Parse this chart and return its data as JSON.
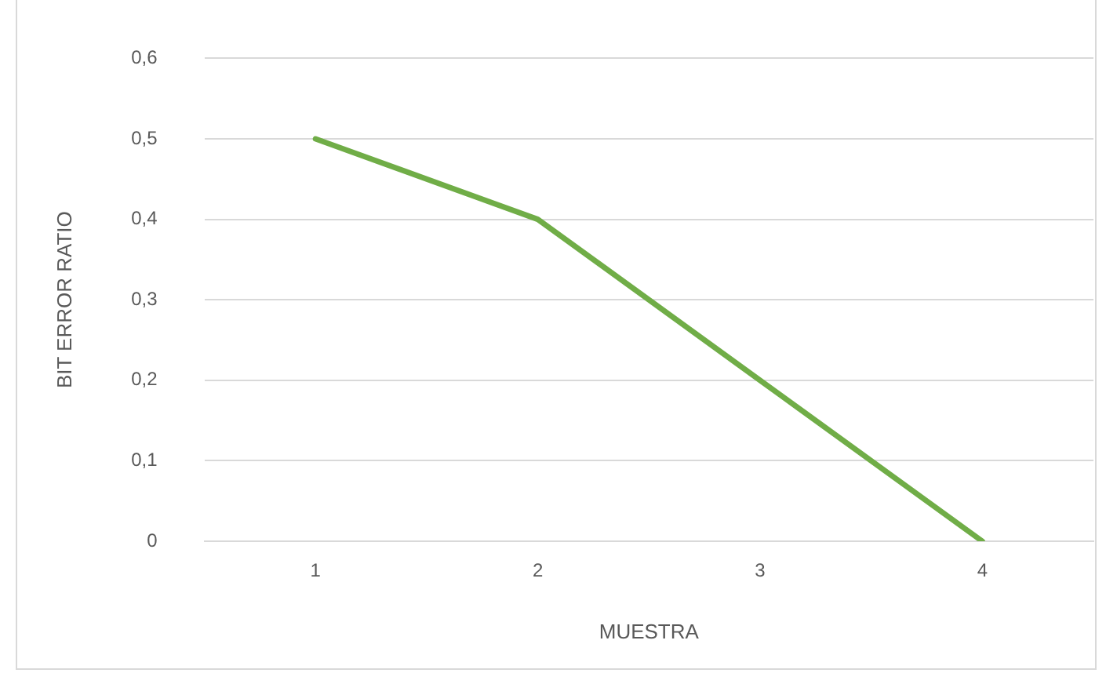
{
  "chart_data": {
    "type": "line",
    "xlabel": "MUESTRA",
    "ylabel": "BIT ERROR RATIO",
    "categories": [
      "1",
      "2",
      "3",
      "4"
    ],
    "series": [
      {
        "color": "#70ad47",
        "values": [
          0.5,
          0.4,
          0.2,
          0
        ]
      }
    ],
    "ylim": [
      0,
      0.6
    ],
    "yticks": [
      {
        "value": 0,
        "label": "0"
      },
      {
        "value": 0.1,
        "label": "0,1"
      },
      {
        "value": 0.2,
        "label": "0,2"
      },
      {
        "value": 0.3,
        "label": "0,3"
      },
      {
        "value": 0.4,
        "label": "0,4"
      },
      {
        "value": 0.5,
        "label": "0,5"
      },
      {
        "value": 0.6,
        "label": "0,6"
      }
    ],
    "grid": "y",
    "marker": "none",
    "line_style": "solid",
    "legend": false
  }
}
